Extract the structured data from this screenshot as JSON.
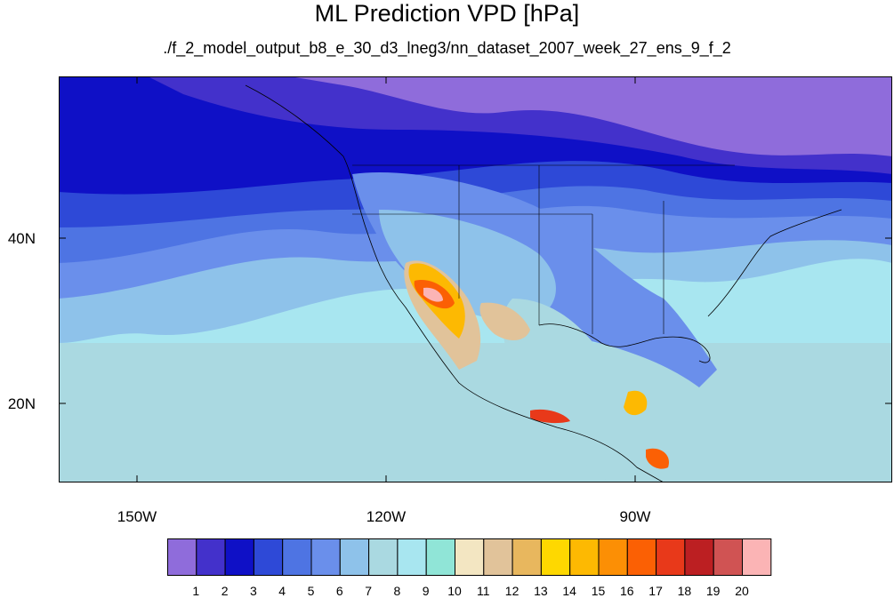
{
  "title": "ML Prediction VPD [hPa]",
  "subtitle": "./f_2_model_output_b8_e_30_d3_lneg3/nn_dataset_2007_week_27_ens_9_f_2",
  "lat_labels": [
    "40N",
    "20N"
  ],
  "lon_labels": [
    "150W",
    "120W",
    "90W"
  ],
  "legend": {
    "colors": [
      "#8f6cdb",
      "#4331cb",
      "#0f10c6",
      "#2e49d7",
      "#4e74e3",
      "#6a8feb",
      "#8ec2ea",
      "#aad9e1",
      "#a8e6f0",
      "#90e5d7",
      "#f3e6c2",
      "#e1c39a",
      "#e8b75e",
      "#fed800",
      "#fdb902",
      "#fc8f05",
      "#fb6004",
      "#e8391a",
      "#bc1f22",
      "#d05353",
      "#fbb4b5"
    ],
    "labels": [
      "1",
      "2",
      "3",
      "4",
      "5",
      "6",
      "7",
      "8",
      "9",
      "10",
      "11",
      "12",
      "13",
      "14",
      "15",
      "16",
      "17",
      "18",
      "19",
      "20"
    ]
  },
  "colors": {
    "ocean_far": "#aad9e1",
    "ocean_mid": "#8ec2ea",
    "arctic": "#8f6cdb",
    "north_band": "#4331cb",
    "boundary": "#000000"
  }
}
